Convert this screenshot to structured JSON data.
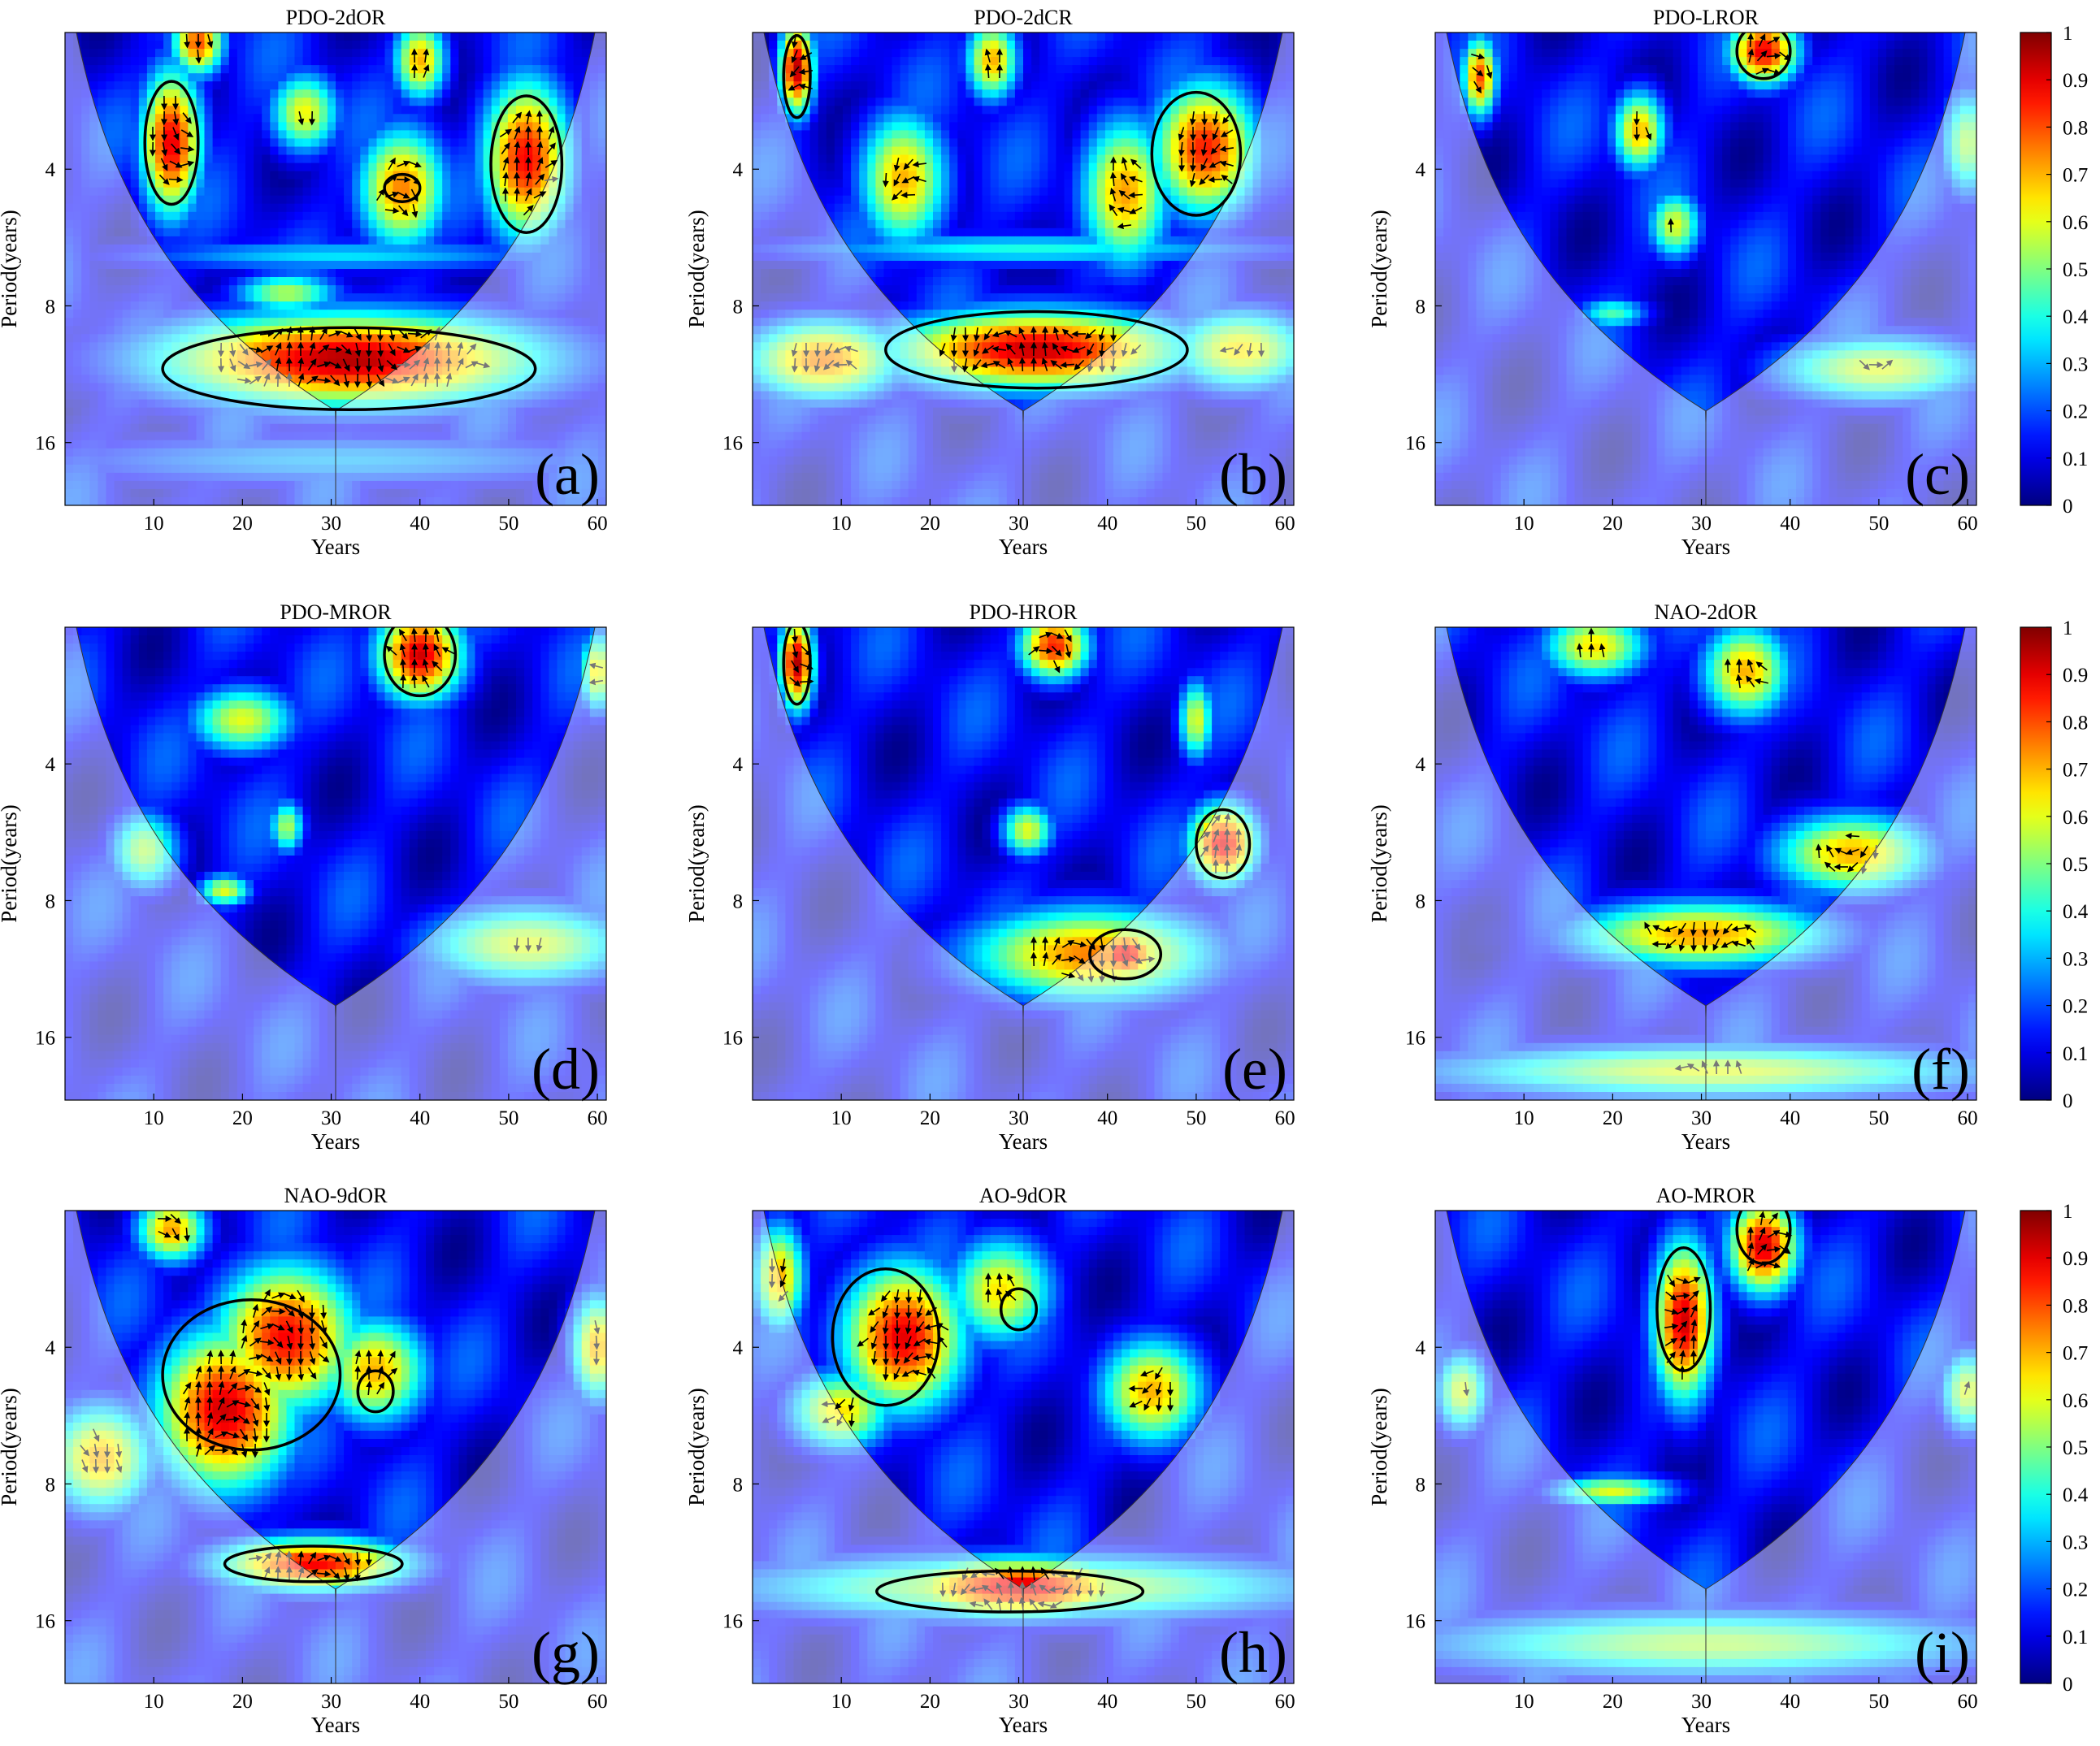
{
  "figure": {
    "colorbar_ticks": [
      "1",
      "0.9",
      "0.8",
      "0.7",
      "0.6",
      "0.5",
      "0.4",
      "0.3",
      "0.2",
      "0.1",
      "0"
    ]
  },
  "chart_data": [
    {
      "type": "heatmap",
      "panel": "(a)",
      "title": "PDO-2dOR",
      "xlabel": "Years",
      "ylabel": "Period(years)",
      "xticks": [
        10,
        20,
        30,
        40,
        50,
        60
      ],
      "yticks": [
        4,
        8,
        16
      ],
      "xlim": [
        0,
        61
      ],
      "ylim": [
        2,
        22
      ],
      "y_scale": "log2",
      "colorbar_range": [
        0,
        1
      ],
      "blobs": [
        {
          "x": 12,
          "y": 3.5,
          "rx": 3.5,
          "ry": 0.55,
          "v": 0.9
        },
        {
          "x": 15,
          "y": 2.1,
          "rx": 3,
          "ry": 0.25,
          "v": 0.8
        },
        {
          "x": 38,
          "y": 4.4,
          "rx": 5,
          "ry": 0.45,
          "v": 0.75
        },
        {
          "x": 40,
          "y": 2.3,
          "rx": 3,
          "ry": 0.3,
          "v": 0.7
        },
        {
          "x": 52,
          "y": 3.8,
          "rx": 5,
          "ry": 0.6,
          "v": 0.88
        },
        {
          "x": 27,
          "y": 3.0,
          "rx": 4,
          "ry": 0.3,
          "v": 0.62
        },
        {
          "x": 32,
          "y": 10.5,
          "rx": 22,
          "ry": 0.35,
          "v": 0.95
        },
        {
          "x": 31,
          "y": 6.2,
          "rx": 26,
          "ry": 0.12,
          "v": 0.35
        },
        {
          "x": 31,
          "y": 17.5,
          "rx": 35,
          "ry": 0.2,
          "v": 0.3
        },
        {
          "x": 25,
          "y": 7.5,
          "rx": 6,
          "ry": 0.15,
          "v": 0.55
        }
      ],
      "sig_contours": [
        {
          "x": 12,
          "y": 3.5,
          "rx": 3,
          "ry": 0.45
        },
        {
          "x": 38,
          "y": 4.4,
          "rx": 2,
          "ry": 0.1
        },
        {
          "x": 52,
          "y": 3.9,
          "rx": 4,
          "ry": 0.5
        },
        {
          "x": 32,
          "y": 11,
          "rx": 21,
          "ry": 0.3
        }
      ]
    },
    {
      "type": "heatmap",
      "panel": "(b)",
      "title": "PDO-2dCR",
      "xlabel": "Years",
      "ylabel": "Period(years)",
      "xticks": [
        10,
        20,
        30,
        40,
        50,
        60
      ],
      "yticks": [
        4,
        8,
        16
      ],
      "xlim": [
        0,
        61
      ],
      "ylim": [
        2,
        22
      ],
      "y_scale": "log2",
      "colorbar_range": [
        0,
        1
      ],
      "blobs": [
        {
          "x": 5,
          "y": 2.4,
          "rx": 2,
          "ry": 0.35,
          "v": 0.95
        },
        {
          "x": 17,
          "y": 4.2,
          "rx": 5,
          "ry": 0.5,
          "v": 0.7
        },
        {
          "x": 27,
          "y": 2.3,
          "rx": 3,
          "ry": 0.3,
          "v": 0.7
        },
        {
          "x": 42,
          "y": 4.5,
          "rx": 5,
          "ry": 0.55,
          "v": 0.72
        },
        {
          "x": 51,
          "y": 3.6,
          "rx": 6,
          "ry": 0.5,
          "v": 0.85
        },
        {
          "x": 32,
          "y": 10,
          "rx": 17,
          "ry": 0.3,
          "v": 0.93
        },
        {
          "x": 8,
          "y": 10.5,
          "rx": 9,
          "ry": 0.3,
          "v": 0.75
        },
        {
          "x": 55,
          "y": 10,
          "rx": 8,
          "ry": 0.3,
          "v": 0.65
        },
        {
          "x": 31,
          "y": 6,
          "rx": 30,
          "ry": 0.12,
          "v": 0.4
        }
      ],
      "sig_contours": [
        {
          "x": 5,
          "y": 2.5,
          "rx": 1.5,
          "ry": 0.3
        },
        {
          "x": 50,
          "y": 3.7,
          "rx": 5,
          "ry": 0.45
        },
        {
          "x": 32,
          "y": 10,
          "rx": 17,
          "ry": 0.28
        }
      ]
    },
    {
      "type": "heatmap",
      "panel": "(c)",
      "title": "PDO-LROR",
      "xlabel": "Years",
      "ylabel": "Period(years)",
      "xticks": [
        10,
        20,
        30,
        40,
        50,
        60
      ],
      "yticks": [
        4,
        8,
        16
      ],
      "xlim": [
        0,
        61
      ],
      "ylim": [
        2,
        22
      ],
      "y_scale": "log2",
      "colorbar_range": [
        0,
        1
      ],
      "blobs": [
        {
          "x": 5,
          "y": 2.5,
          "rx": 2,
          "ry": 0.3,
          "v": 0.8
        },
        {
          "x": 37,
          "y": 2.2,
          "rx": 4,
          "ry": 0.25,
          "v": 0.9
        },
        {
          "x": 23,
          "y": 3.3,
          "rx": 3,
          "ry": 0.3,
          "v": 0.7
        },
        {
          "x": 27,
          "y": 5.3,
          "rx": 3,
          "ry": 0.25,
          "v": 0.6
        },
        {
          "x": 20,
          "y": 8.3,
          "rx": 4,
          "ry": 0.12,
          "v": 0.45
        },
        {
          "x": 50,
          "y": 11,
          "rx": 12,
          "ry": 0.25,
          "v": 0.6
        },
        {
          "x": 60,
          "y": 3.5,
          "rx": 3,
          "ry": 0.4,
          "v": 0.55
        }
      ],
      "sig_contours": [
        {
          "x": 37,
          "y": 2.2,
          "rx": 3,
          "ry": 0.2
        }
      ]
    },
    {
      "type": "heatmap",
      "panel": "(d)",
      "title": "PDO-MROR",
      "xlabel": "Years",
      "ylabel": "Period(years)",
      "xticks": [
        10,
        20,
        30,
        40,
        50,
        60
      ],
      "yticks": [
        4,
        8,
        16
      ],
      "xlim": [
        0,
        61
      ],
      "ylim": [
        2,
        22
      ],
      "y_scale": "log2",
      "colorbar_range": [
        0,
        1
      ],
      "blobs": [
        {
          "x": 40,
          "y": 2.3,
          "rx": 5,
          "ry": 0.35,
          "v": 0.92
        },
        {
          "x": 20,
          "y": 3.2,
          "rx": 6,
          "ry": 0.25,
          "v": 0.6
        },
        {
          "x": 9,
          "y": 6.2,
          "rx": 4,
          "ry": 0.3,
          "v": 0.55
        },
        {
          "x": 18,
          "y": 7.6,
          "rx": 3,
          "ry": 0.12,
          "v": 0.6
        },
        {
          "x": 25,
          "y": 5.5,
          "rx": 2,
          "ry": 0.2,
          "v": 0.55
        },
        {
          "x": 52,
          "y": 10,
          "rx": 12,
          "ry": 0.3,
          "v": 0.6
        },
        {
          "x": 60,
          "y": 2.5,
          "rx": 2,
          "ry": 0.3,
          "v": 0.65
        }
      ],
      "sig_contours": [
        {
          "x": 40,
          "y": 2.3,
          "rx": 4,
          "ry": 0.3
        }
      ]
    },
    {
      "type": "heatmap",
      "panel": "(e)",
      "title": "PDO-HROR",
      "xlabel": "Years",
      "ylabel": "Period(years)",
      "xticks": [
        10,
        20,
        30,
        40,
        50,
        60
      ],
      "yticks": [
        4,
        8,
        16
      ],
      "xlim": [
        0,
        61
      ],
      "ylim": [
        2,
        22
      ],
      "y_scale": "log2",
      "colorbar_range": [
        0,
        1
      ],
      "blobs": [
        {
          "x": 5,
          "y": 2.4,
          "rx": 2,
          "ry": 0.35,
          "v": 0.95
        },
        {
          "x": 34,
          "y": 2.2,
          "rx": 4,
          "ry": 0.25,
          "v": 0.85
        },
        {
          "x": 50,
          "y": 3.2,
          "rx": 2,
          "ry": 0.3,
          "v": 0.6
        },
        {
          "x": 53,
          "y": 6.0,
          "rx": 4,
          "ry": 0.3,
          "v": 0.9
        },
        {
          "x": 31,
          "y": 5.6,
          "rx": 3,
          "ry": 0.2,
          "v": 0.6
        },
        {
          "x": 38,
          "y": 10.5,
          "rx": 14,
          "ry": 0.35,
          "v": 0.75
        },
        {
          "x": 42,
          "y": 10.5,
          "rx": 4,
          "ry": 0.2,
          "v": 0.92
        }
      ],
      "sig_contours": [
        {
          "x": 5,
          "y": 2.4,
          "rx": 1.5,
          "ry": 0.3
        },
        {
          "x": 53,
          "y": 6.0,
          "rx": 3,
          "ry": 0.25
        },
        {
          "x": 42,
          "y": 10.5,
          "rx": 4,
          "ry": 0.18
        }
      ]
    },
    {
      "type": "heatmap",
      "panel": "(f)",
      "title": "NAO-2dOR",
      "xlabel": "Years",
      "ylabel": "Period(years)",
      "xticks": [
        10,
        20,
        30,
        40,
        50,
        60
      ],
      "yticks": [
        4,
        8,
        16
      ],
      "xlim": [
        0,
        61
      ],
      "ylim": [
        2,
        22
      ],
      "y_scale": "log2",
      "colorbar_range": [
        0,
        1
      ],
      "blobs": [
        {
          "x": 18,
          "y": 2.2,
          "rx": 6,
          "ry": 0.25,
          "v": 0.65
        },
        {
          "x": 35,
          "y": 2.5,
          "rx": 5,
          "ry": 0.35,
          "v": 0.7
        },
        {
          "x": 47,
          "y": 6.3,
          "rx": 9,
          "ry": 0.3,
          "v": 0.7
        },
        {
          "x": 30,
          "y": 9.5,
          "rx": 15,
          "ry": 0.25,
          "v": 0.72
        },
        {
          "x": 31,
          "y": 19,
          "rx": 32,
          "ry": 0.2,
          "v": 0.6
        }
      ],
      "sig_contours": []
    },
    {
      "type": "heatmap",
      "panel": "(g)",
      "title": "NAO-9dOR",
      "xlabel": "Years",
      "ylabel": "Period(years)",
      "xticks": [
        10,
        20,
        30,
        40,
        50,
        60
      ],
      "yticks": [
        4,
        8,
        16
      ],
      "xlim": [
        0,
        61
      ],
      "ylim": [
        2,
        22
      ],
      "y_scale": "log2",
      "colorbar_range": [
        0,
        1
      ],
      "blobs": [
        {
          "x": 18,
          "y": 5.5,
          "rx": 8,
          "ry": 0.6,
          "v": 0.92
        },
        {
          "x": 25,
          "y": 3.8,
          "rx": 8,
          "ry": 0.55,
          "v": 0.88
        },
        {
          "x": 35,
          "y": 4.5,
          "rx": 6,
          "ry": 0.4,
          "v": 0.7
        },
        {
          "x": 28,
          "y": 12,
          "rx": 11,
          "ry": 0.2,
          "v": 0.88
        },
        {
          "x": 4,
          "y": 7.0,
          "rx": 6,
          "ry": 0.4,
          "v": 0.7
        },
        {
          "x": 60,
          "y": 4.0,
          "rx": 3,
          "ry": 0.4,
          "v": 0.7
        },
        {
          "x": 12,
          "y": 2.2,
          "rx": 4,
          "ry": 0.25,
          "v": 0.72
        }
      ],
      "sig_contours": [
        {
          "x": 21,
          "y": 4.6,
          "rx": 10,
          "ry": 0.55
        },
        {
          "x": 35,
          "y": 5.0,
          "rx": 2,
          "ry": 0.15
        },
        {
          "x": 28,
          "y": 12,
          "rx": 10,
          "ry": 0.13
        }
      ]
    },
    {
      "type": "heatmap",
      "panel": "(h)",
      "title": "AO-9dOR",
      "xlabel": "Years",
      "ylabel": "Period(years)",
      "xticks": [
        10,
        20,
        30,
        40,
        50,
        60
      ],
      "yticks": [
        4,
        8,
        16
      ],
      "xlim": [
        0,
        61
      ],
      "ylim": [
        2,
        22
      ],
      "y_scale": "log2",
      "colorbar_range": [
        0,
        1
      ],
      "blobs": [
        {
          "x": 17,
          "y": 3.8,
          "rx": 7,
          "ry": 0.55,
          "v": 0.9
        },
        {
          "x": 30,
          "y": 13.5,
          "rx": 14,
          "ry": 0.22,
          "v": 0.92
        },
        {
          "x": 10,
          "y": 5.5,
          "rx": 6,
          "ry": 0.3,
          "v": 0.65
        },
        {
          "x": 45,
          "y": 5.0,
          "rx": 6,
          "ry": 0.4,
          "v": 0.7
        },
        {
          "x": 28,
          "y": 3.0,
          "rx": 6,
          "ry": 0.4,
          "v": 0.65
        },
        {
          "x": 31,
          "y": 13.5,
          "rx": 33,
          "ry": 0.25,
          "v": 0.6
        },
        {
          "x": 3,
          "y": 2.8,
          "rx": 3,
          "ry": 0.4,
          "v": 0.7
        }
      ],
      "sig_contours": [
        {
          "x": 15,
          "y": 3.8,
          "rx": 6,
          "ry": 0.5
        },
        {
          "x": 30,
          "y": 3.3,
          "rx": 2,
          "ry": 0.15
        },
        {
          "x": 29,
          "y": 13.8,
          "rx": 15,
          "ry": 0.15
        }
      ]
    },
    {
      "type": "heatmap",
      "panel": "(i)",
      "title": "AO-MROR",
      "xlabel": "Years",
      "ylabel": "Period(years)",
      "xticks": [
        10,
        20,
        30,
        40,
        50,
        60
      ],
      "yticks": [
        4,
        8,
        16
      ],
      "xlim": [
        0,
        61
      ],
      "ylim": [
        2,
        22
      ],
      "y_scale": "log2",
      "colorbar_range": [
        0,
        1
      ],
      "blobs": [
        {
          "x": 28,
          "y": 3.5,
          "rx": 3.5,
          "ry": 0.6,
          "v": 0.92
        },
        {
          "x": 37,
          "y": 2.4,
          "rx": 4,
          "ry": 0.35,
          "v": 0.92
        },
        {
          "x": 20,
          "y": 8.3,
          "rx": 7,
          "ry": 0.12,
          "v": 0.6
        },
        {
          "x": 31,
          "y": 18,
          "rx": 33,
          "ry": 0.25,
          "v": 0.55
        },
        {
          "x": 60,
          "y": 5.0,
          "rx": 3,
          "ry": 0.3,
          "v": 0.6
        },
        {
          "x": 3,
          "y": 5.0,
          "rx": 3,
          "ry": 0.3,
          "v": 0.6
        }
      ],
      "sig_contours": [
        {
          "x": 28,
          "y": 3.3,
          "rx": 3,
          "ry": 0.45
        },
        {
          "x": 37,
          "y": 2.2,
          "rx": 3,
          "ry": 0.25
        }
      ]
    }
  ]
}
